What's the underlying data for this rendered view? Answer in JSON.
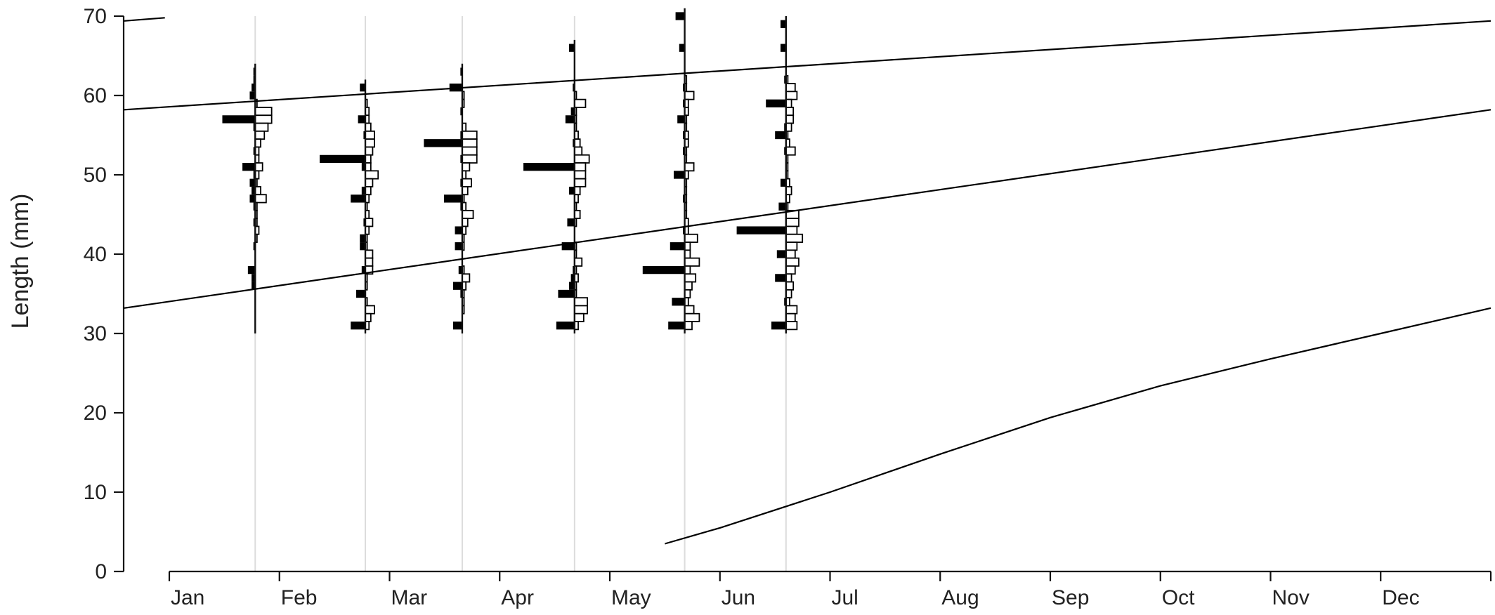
{
  "chart_data": {
    "type": "line",
    "title": "",
    "xlabel": "",
    "ylabel": "Length (mm)",
    "x_ticks": [
      "Jan",
      "Feb",
      "Mar",
      "Apr",
      "May",
      "Jun",
      "Jul",
      "Aug",
      "Sep",
      "Oct",
      "Nov",
      "Dec"
    ],
    "y_ticks": [
      0,
      10,
      20,
      30,
      40,
      50,
      60,
      70
    ],
    "xlim": [
      0,
      12
    ],
    "ylim": [
      0,
      70
    ],
    "grid": false,
    "legend": "none",
    "growth_curves": [
      {
        "x": [
          -0.41,
          -0.04
        ],
        "y": [
          69.4,
          69.8
        ]
      },
      {
        "x": [
          -0.41,
          12
        ],
        "y": [
          58.2,
          69.4
        ]
      },
      {
        "x": [
          -0.41,
          12
        ],
        "y": [
          33.2,
          58.2
        ]
      },
      {
        "x": [
          4.5,
          5,
          6,
          7,
          8,
          9,
          10,
          11,
          12
        ],
        "y": [
          3.5,
          5.5,
          10.0,
          14.8,
          19.4,
          23.4,
          26.8,
          30.0,
          33.2
        ]
      }
    ],
    "sample_dates": [
      0.78,
      1.78,
      2.66,
      3.68,
      4.68,
      5.6
    ],
    "length_frequency": {
      "bin_width_mm": 1,
      "observed_black": [
        {
          "date": 0.78,
          "bins": [
            [
              63,
              1
            ],
            [
              62,
              1
            ],
            [
              61,
              2
            ],
            [
              60,
              3
            ],
            [
              57,
              18
            ],
            [
              56,
              1
            ],
            [
              53,
              1
            ],
            [
              51,
              7
            ],
            [
              50,
              1
            ],
            [
              49,
              3
            ],
            [
              48,
              2
            ],
            [
              47,
              3
            ],
            [
              46,
              1
            ],
            [
              44,
              1
            ],
            [
              41,
              1
            ],
            [
              38,
              4
            ],
            [
              37,
              2
            ],
            [
              36,
              2
            ]
          ]
        },
        {
          "date": 1.78,
          "bins": [
            [
              61,
              3
            ],
            [
              57,
              4
            ],
            [
              55,
              1
            ],
            [
              52,
              25
            ],
            [
              51,
              2
            ],
            [
              48,
              2
            ],
            [
              47,
              8
            ],
            [
              44,
              1
            ],
            [
              42,
              3
            ],
            [
              41,
              3
            ],
            [
              38,
              2
            ],
            [
              35,
              5
            ],
            [
              31,
              8
            ]
          ]
        },
        {
          "date": 2.66,
          "bins": [
            [
              63,
              1
            ],
            [
              61,
              7
            ],
            [
              58,
              1
            ],
            [
              55,
              1
            ],
            [
              54,
              21
            ],
            [
              52,
              1
            ],
            [
              49,
              1
            ],
            [
              47,
              10
            ],
            [
              46,
              1
            ],
            [
              43,
              4
            ],
            [
              41,
              4
            ],
            [
              38,
              2
            ],
            [
              36,
              5
            ],
            [
              35,
              1
            ],
            [
              31,
              5
            ]
          ]
        },
        {
          "date": 3.68,
          "bins": [
            [
              66,
              3
            ],
            [
              61,
              1
            ],
            [
              58,
              2
            ],
            [
              57,
              5
            ],
            [
              54,
              1
            ],
            [
              51,
              28
            ],
            [
              48,
              3
            ],
            [
              44,
              4
            ],
            [
              41,
              7
            ],
            [
              38,
              1
            ],
            [
              37,
              2
            ],
            [
              36,
              3
            ],
            [
              35,
              9
            ],
            [
              31,
              10
            ]
          ]
        },
        {
          "date": 4.68,
          "bins": [
            [
              70,
              5
            ],
            [
              66,
              3
            ],
            [
              61,
              1
            ],
            [
              59,
              1
            ],
            [
              57,
              4
            ],
            [
              55,
              1
            ],
            [
              53,
              1
            ],
            [
              50,
              6
            ],
            [
              47,
              1
            ],
            [
              43,
              1
            ],
            [
              41,
              8
            ],
            [
              38,
              23
            ],
            [
              34,
              7
            ],
            [
              31,
              9
            ]
          ]
        },
        {
          "date": 5.6,
          "bins": [
            [
              69,
              3
            ],
            [
              66,
              3
            ],
            [
              62,
              1
            ],
            [
              59,
              11
            ],
            [
              56,
              1
            ],
            [
              55,
              6
            ],
            [
              53,
              1
            ],
            [
              49,
              3
            ],
            [
              46,
              4
            ],
            [
              43,
              27
            ],
            [
              40,
              5
            ],
            [
              37,
              6
            ],
            [
              34,
              1
            ],
            [
              31,
              8
            ]
          ]
        }
      ],
      "predicted_white": [
        {
          "date": 0.78,
          "bins": [
            [
              59,
              1
            ],
            [
              58,
              9
            ],
            [
              57,
              9
            ],
            [
              56,
              7
            ],
            [
              55,
              5
            ],
            [
              54,
              3
            ],
            [
              53,
              2
            ],
            [
              52,
              2
            ],
            [
              51,
              4
            ],
            [
              50,
              2
            ],
            [
              49,
              1
            ],
            [
              48,
              3
            ],
            [
              47,
              6
            ],
            [
              46,
              1
            ],
            [
              45,
              1
            ],
            [
              44,
              1
            ],
            [
              43,
              2
            ],
            [
              42,
              1
            ]
          ]
        },
        {
          "date": 1.78,
          "bins": [
            [
              59,
              1
            ],
            [
              58,
              2
            ],
            [
              57,
              2
            ],
            [
              56,
              3
            ],
            [
              55,
              5
            ],
            [
              54,
              5
            ],
            [
              53,
              4
            ],
            [
              52,
              3
            ],
            [
              51,
              3
            ],
            [
              50,
              7
            ],
            [
              49,
              4
            ],
            [
              48,
              3
            ],
            [
              47,
              2
            ],
            [
              46,
              1
            ],
            [
              45,
              2
            ],
            [
              44,
              4
            ],
            [
              43,
              2
            ],
            [
              42,
              1
            ],
            [
              41,
              1
            ],
            [
              40,
              4
            ],
            [
              39,
              4
            ],
            [
              38,
              4
            ],
            [
              37,
              1
            ],
            [
              36,
              1
            ],
            [
              34,
              1
            ],
            [
              33,
              5
            ],
            [
              32,
              3
            ],
            [
              31,
              2
            ]
          ]
        },
        {
          "date": 2.66,
          "bins": [
            [
              60,
              1
            ],
            [
              59,
              1
            ],
            [
              56,
              2
            ],
            [
              55,
              8
            ],
            [
              54,
              8
            ],
            [
              53,
              8
            ],
            [
              52,
              8
            ],
            [
              51,
              4
            ],
            [
              50,
              2
            ],
            [
              49,
              5
            ],
            [
              48,
              3
            ],
            [
              47,
              1
            ],
            [
              46,
              2
            ],
            [
              45,
              6
            ],
            [
              44,
              3
            ],
            [
              43,
              2
            ],
            [
              42,
              1
            ],
            [
              41,
              1
            ],
            [
              38,
              1
            ],
            [
              37,
              4
            ],
            [
              36,
              2
            ],
            [
              35,
              1
            ],
            [
              34,
              1
            ],
            [
              33,
              1
            ]
          ]
        },
        {
          "date": 3.68,
          "bins": [
            [
              60,
              1
            ],
            [
              59,
              6
            ],
            [
              58,
              1
            ],
            [
              57,
              1
            ],
            [
              56,
              1
            ],
            [
              55,
              2
            ],
            [
              54,
              3
            ],
            [
              53,
              4
            ],
            [
              52,
              8
            ],
            [
              51,
              6
            ],
            [
              50,
              6
            ],
            [
              49,
              6
            ],
            [
              48,
              3
            ],
            [
              47,
              2
            ],
            [
              46,
              1
            ],
            [
              45,
              3
            ],
            [
              44,
              1
            ],
            [
              41,
              1
            ],
            [
              40,
              1
            ],
            [
              39,
              4
            ],
            [
              38,
              1
            ],
            [
              37,
              2
            ],
            [
              36,
              1
            ],
            [
              35,
              1
            ],
            [
              34,
              7
            ],
            [
              33,
              7
            ],
            [
              32,
              5
            ],
            [
              31,
              2
            ]
          ]
        },
        {
          "date": 4.68,
          "bins": [
            [
              62,
              1
            ],
            [
              61,
              1
            ],
            [
              60,
              5
            ],
            [
              59,
              2
            ],
            [
              58,
              2
            ],
            [
              57,
              1
            ],
            [
              56,
              1
            ],
            [
              55,
              2
            ],
            [
              54,
              2
            ],
            [
              53,
              1
            ],
            [
              52,
              1
            ],
            [
              51,
              5
            ],
            [
              50,
              2
            ],
            [
              49,
              1
            ],
            [
              48,
              1
            ],
            [
              47,
              1
            ],
            [
              46,
              1
            ],
            [
              45,
              1
            ],
            [
              44,
              2
            ],
            [
              43,
              2
            ],
            [
              42,
              7
            ],
            [
              41,
              3
            ],
            [
              40,
              3
            ],
            [
              39,
              8
            ],
            [
              38,
              3
            ],
            [
              37,
              6
            ],
            [
              36,
              4
            ],
            [
              35,
              3
            ],
            [
              34,
              2
            ],
            [
              33,
              5
            ],
            [
              32,
              8
            ],
            [
              31,
              4
            ]
          ]
        },
        {
          "date": 5.6,
          "bins": [
            [
              62,
              1
            ],
            [
              61,
              5
            ],
            [
              60,
              6
            ],
            [
              59,
              3
            ],
            [
              58,
              4
            ],
            [
              57,
              4
            ],
            [
              56,
              3
            ],
            [
              55,
              1
            ],
            [
              54,
              2
            ],
            [
              53,
              5
            ],
            [
              52,
              1
            ],
            [
              51,
              1
            ],
            [
              50,
              1
            ],
            [
              49,
              2
            ],
            [
              48,
              3
            ],
            [
              47,
              2
            ],
            [
              46,
              1
            ],
            [
              45,
              7
            ],
            [
              44,
              7
            ],
            [
              43,
              6
            ],
            [
              42,
              9
            ],
            [
              41,
              6
            ],
            [
              40,
              5
            ],
            [
              39,
              7
            ],
            [
              38,
              5
            ],
            [
              37,
              3
            ],
            [
              36,
              4
            ],
            [
              35,
              3
            ],
            [
              34,
              2
            ],
            [
              33,
              6
            ],
            [
              32,
              5
            ],
            [
              31,
              6
            ]
          ]
        }
      ]
    }
  }
}
